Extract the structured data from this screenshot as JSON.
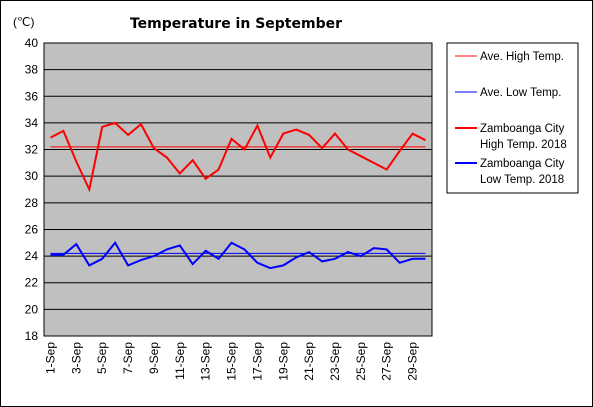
{
  "chart_data": {
    "type": "line",
    "title": "Temperature in September",
    "unit": "(℃)",
    "ylim": [
      18,
      40
    ],
    "y_ticks": [
      "40",
      "38",
      "36",
      "34",
      "32",
      "30",
      "28",
      "26",
      "24",
      "22",
      "20",
      "18"
    ],
    "x": [
      "1-Sep",
      "2-Sep",
      "3-Sep",
      "4-Sep",
      "5-Sep",
      "6-Sep",
      "7-Sep",
      "8-Sep",
      "9-Sep",
      "10-Sep",
      "11-Sep",
      "12-Sep",
      "13-Sep",
      "14-Sep",
      "15-Sep",
      "16-Sep",
      "17-Sep",
      "18-Sep",
      "19-Sep",
      "20-Sep",
      "21-Sep",
      "22-Sep",
      "23-Sep",
      "24-Sep",
      "25-Sep",
      "26-Sep",
      "27-Sep",
      "28-Sep",
      "29-Sep",
      "30-Sep"
    ],
    "x_tick_labels": [
      "1-Sep",
      "3-Sep",
      "5-Sep",
      "7-Sep",
      "9-Sep",
      "11-Sep",
      "13-Sep",
      "15-Sep",
      "17-Sep",
      "19-Sep",
      "21-Sep",
      "23-Sep",
      "25-Sep",
      "27-Sep",
      "29-Sep"
    ],
    "grid": true,
    "legend_position": "right",
    "series": [
      {
        "name": "Ave. High Temp.",
        "color": "#ff0000",
        "line_width": "thin",
        "values": [
          32.2,
          32.2,
          32.2,
          32.2,
          32.2,
          32.2,
          32.2,
          32.2,
          32.2,
          32.2,
          32.2,
          32.2,
          32.2,
          32.2,
          32.2,
          32.2,
          32.2,
          32.2,
          32.2,
          32.2,
          32.2,
          32.2,
          32.2,
          32.2,
          32.2,
          32.2,
          32.2,
          32.2,
          32.2,
          32.2
        ]
      },
      {
        "name": "Ave. Low Temp.",
        "color": "#0000ff",
        "line_width": "thin",
        "values": [
          24.2,
          24.2,
          24.2,
          24.2,
          24.2,
          24.2,
          24.2,
          24.2,
          24.2,
          24.2,
          24.2,
          24.2,
          24.2,
          24.2,
          24.2,
          24.2,
          24.2,
          24.2,
          24.2,
          24.2,
          24.2,
          24.2,
          24.2,
          24.2,
          24.2,
          24.2,
          24.2,
          24.2,
          24.2,
          24.2
        ]
      },
      {
        "name": "Zamboanga City High Temp. 2018",
        "name_lines": [
          "Zamboanga City",
          "High Temp. 2018"
        ],
        "color": "#ff0000",
        "line_width": "thick",
        "values": [
          32.9,
          33.4,
          31.1,
          29.0,
          33.7,
          34.0,
          33.1,
          33.9,
          32.1,
          31.4,
          30.2,
          31.2,
          29.8,
          30.5,
          32.8,
          32.0,
          33.8,
          31.4,
          33.2,
          33.5,
          33.1,
          32.1,
          33.2,
          32.0,
          31.5,
          31.0,
          30.5,
          31.9,
          33.2,
          32.7
        ]
      },
      {
        "name": "Zamboanga City Low Temp. 2018",
        "name_lines": [
          "Zamboanga City",
          "Low Temp. 2018"
        ],
        "color": "#0000ff",
        "line_width": "thick",
        "values": [
          24.1,
          24.1,
          24.9,
          23.3,
          23.8,
          25.0,
          23.3,
          23.7,
          24.0,
          24.5,
          24.8,
          23.4,
          24.4,
          23.8,
          25.0,
          24.5,
          23.5,
          23.1,
          23.3,
          23.9,
          24.3,
          23.6,
          23.8,
          24.3,
          24.0,
          24.6,
          24.5,
          23.5,
          23.8,
          23.8
        ]
      }
    ]
  }
}
